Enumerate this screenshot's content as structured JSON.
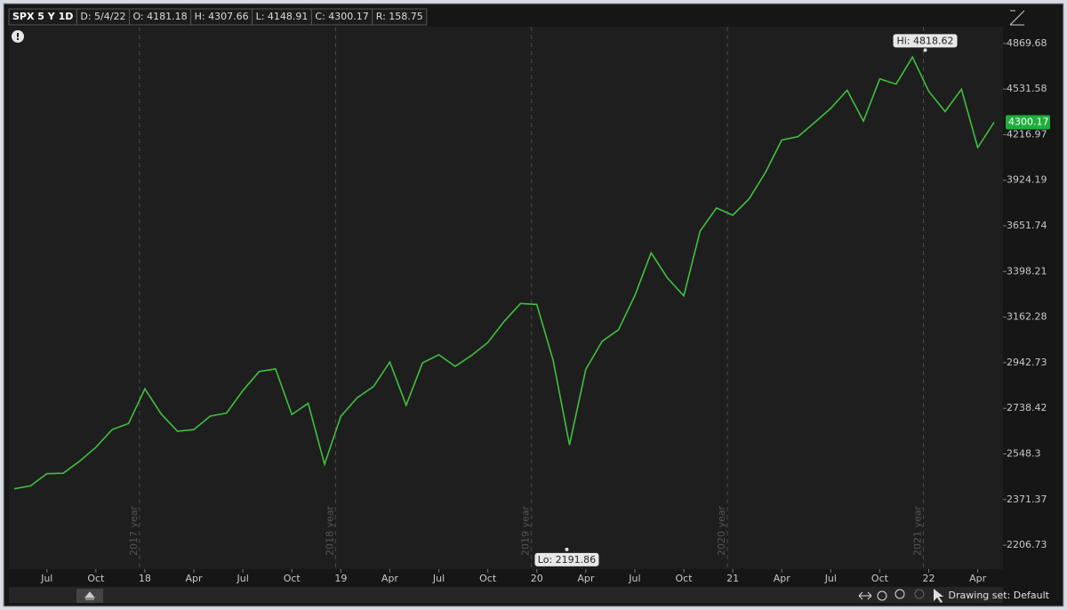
{
  "chart_data": {
    "type": "line",
    "header": [
      "SPX 5 Y 1D",
      "D: 5/4/22",
      "O: 4181.18",
      "H: 4307.66",
      "L: 4148.91",
      "C: 4300.17",
      "R: 158.75"
    ],
    "categories": [
      null,
      null,
      "Jul",
      null,
      null,
      "Oct",
      null,
      null,
      "18",
      null,
      null,
      "Apr",
      null,
      null,
      "Jul",
      null,
      null,
      "Oct",
      null,
      null,
      "19",
      null,
      null,
      "Apr",
      null,
      null,
      "Jul",
      null,
      null,
      "Oct",
      null,
      null,
      "20",
      null,
      null,
      "Apr",
      null,
      null,
      "Jul",
      null,
      null,
      "Oct",
      null,
      null,
      "21",
      null,
      null,
      "Apr",
      null,
      null,
      "Jul",
      null,
      null,
      "Oct",
      null,
      null,
      "22",
      null,
      null,
      "Apr",
      null
    ],
    "series": [
      {
        "color": "#3fbf3f",
        "values": [
          2412,
          2423,
          2470,
          2472,
          2519,
          2575,
          2648,
          2674,
          2824,
          2714,
          2641,
          2648,
          2705,
          2718,
          2816,
          2902,
          2914,
          2712,
          2760,
          2507,
          2704,
          2784,
          2834,
          2946,
          2752,
          2942,
          2980,
          2926,
          2977,
          3038,
          3141,
          3231,
          3226,
          2954,
          2585,
          2912,
          3044,
          3100,
          3271,
          3500,
          3363,
          3270,
          3622,
          3756,
          3714,
          3811,
          3973,
          4181,
          4204,
          4298,
          4395,
          4523,
          4308,
          4605,
          4567,
          4766,
          4516,
          4374,
          4530,
          4132,
          4300.17
        ]
      }
    ],
    "ylim": [
      2125,
      5000
    ],
    "log": true,
    "yticks": [
      2206.73,
      2371.37,
      2548.3,
      2738.42,
      2942.73,
      3162.28,
      3398.21,
      3651.74,
      3924.19,
      4216.97,
      4531.58,
      4869.68
    ],
    "grid": false,
    "annotations": [
      {
        "value": 4818.62,
        "label": "Hi: 4818.62"
      },
      {
        "value": 2191.86,
        "label": "Lo: 2191.86"
      }
    ],
    "year_markers": [
      "2017 year",
      "2018 year",
      "2019 year",
      "2020 year",
      "2021 year"
    ],
    "footer": "Drawing set: Default"
  }
}
